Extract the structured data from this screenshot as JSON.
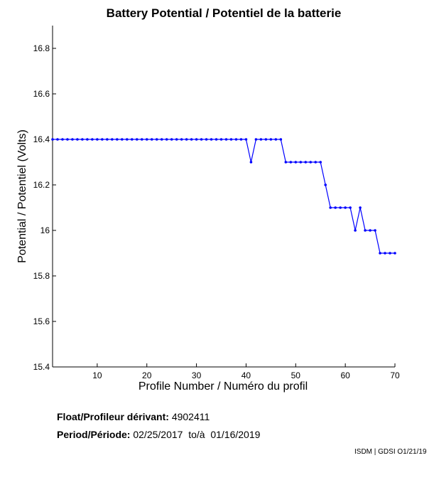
{
  "chart_data": {
    "type": "line",
    "title": "Battery Potential / Potentiel de la batterie",
    "xlabel": "Profile Number / Numéro du profil",
    "ylabel": "Potential / Potentiel (Volts)",
    "xlim": [
      1,
      70
    ],
    "ylim": [
      15.4,
      16.9
    ],
    "x_ticks": [
      10,
      20,
      30,
      40,
      50,
      60,
      70
    ],
    "y_ticks": [
      15.4,
      15.6,
      15.8,
      16,
      16.2,
      16.4,
      16.6,
      16.8
    ],
    "y_tick_labels": [
      "15.4",
      "15.6",
      "15.8",
      "16",
      "16.2",
      "16.4",
      "16.6",
      "16.8"
    ],
    "grid": false,
    "line_color": "#0000ff",
    "series": [
      {
        "x": [
          1,
          2,
          3,
          4,
          5,
          6,
          7,
          8,
          9,
          10,
          11,
          12,
          13,
          14,
          15,
          16,
          17,
          18,
          19,
          20,
          21,
          22,
          23,
          24,
          25,
          26,
          27,
          28,
          29,
          30,
          31,
          32,
          33,
          34,
          35,
          36,
          37,
          38,
          39,
          40,
          41,
          42,
          43,
          44,
          45,
          46,
          47,
          48,
          49,
          50,
          51,
          52,
          53,
          54,
          55,
          56,
          57,
          58,
          59,
          60,
          61,
          62,
          63,
          64,
          65,
          66,
          67,
          68,
          69,
          70
        ],
        "values": [
          16.4,
          16.4,
          16.4,
          16.4,
          16.4,
          16.4,
          16.4,
          16.4,
          16.4,
          16.4,
          16.4,
          16.4,
          16.4,
          16.4,
          16.4,
          16.4,
          16.4,
          16.4,
          16.4,
          16.4,
          16.4,
          16.4,
          16.4,
          16.4,
          16.4,
          16.4,
          16.4,
          16.4,
          16.4,
          16.4,
          16.4,
          16.4,
          16.4,
          16.4,
          16.4,
          16.4,
          16.4,
          16.4,
          16.4,
          16.4,
          16.3,
          16.4,
          16.4,
          16.4,
          16.4,
          16.4,
          16.4,
          16.3,
          16.3,
          16.3,
          16.3,
          16.3,
          16.3,
          16.3,
          16.3,
          16.2,
          16.1,
          16.1,
          16.1,
          16.1,
          16.1,
          16.0,
          16.1,
          16.0,
          16.0,
          16.0,
          15.9,
          15.9,
          15.9,
          15.9
        ]
      }
    ]
  },
  "info": {
    "float_label": "Float/Profileur dérivant:",
    "float_value": "4902411",
    "period_label": "Period/Période:",
    "period_value": "02/25/2017  to/à  01/16/2019"
  },
  "footer": "ISDM | GDSI O1/21/19"
}
